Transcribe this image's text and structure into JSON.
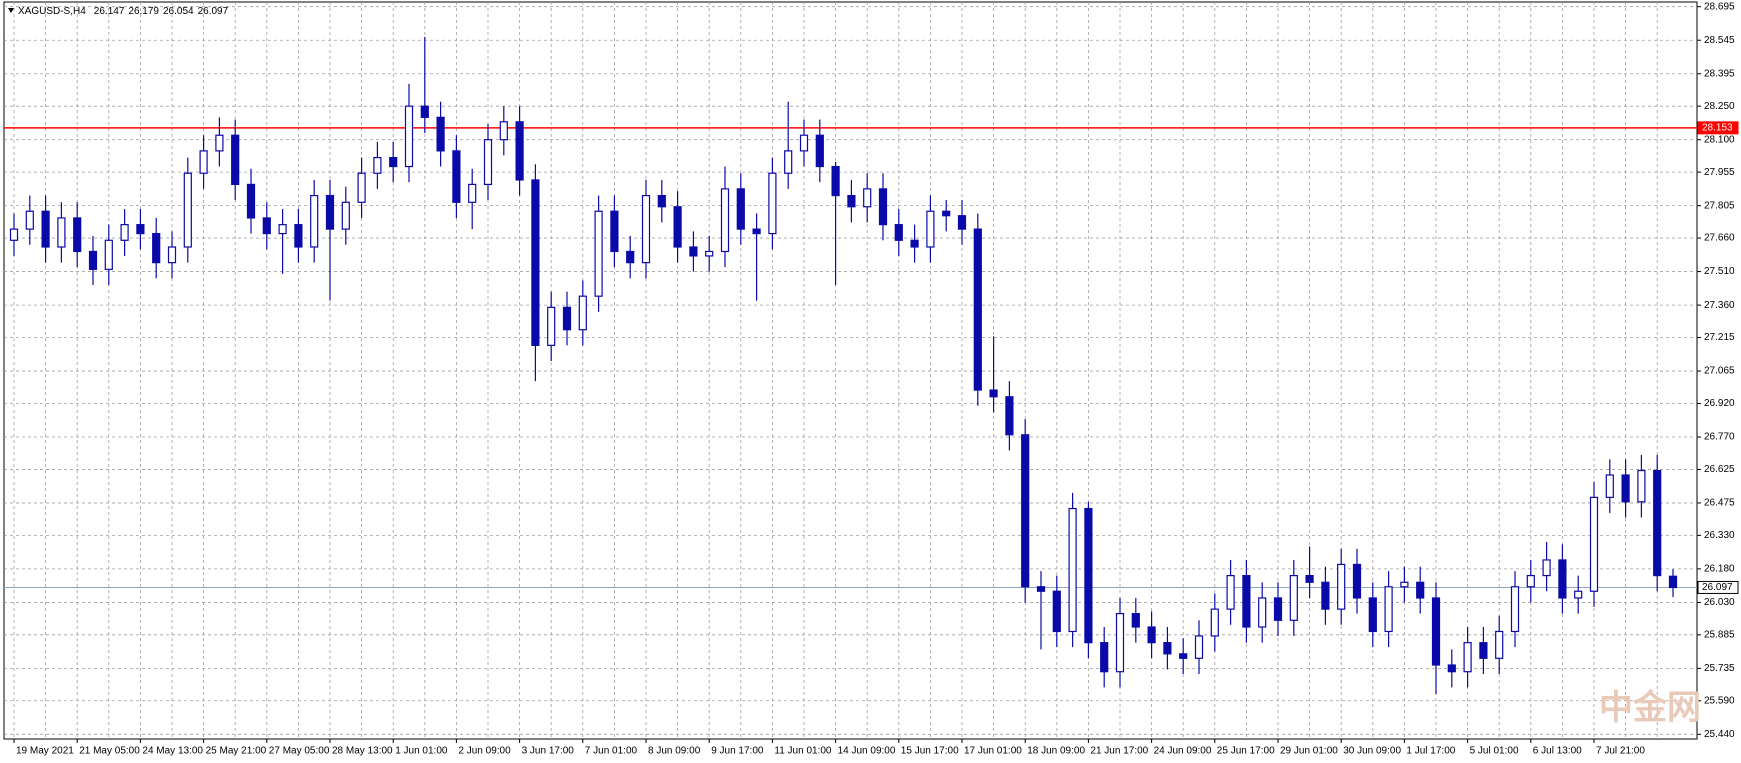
{
  "chart_data": {
    "type": "candlestick",
    "symbol": "XAGUSD-S,H4",
    "watermark": "中金网",
    "categories": [
      "19 May 2021",
      null,
      null,
      null,
      "21 May 05:00",
      null,
      null,
      null,
      "24 May 13:00",
      null,
      null,
      null,
      "25 May 21:00",
      null,
      null,
      null,
      "27 May 05:00",
      null,
      null,
      null,
      "28 May 13:00",
      null,
      null,
      null,
      "1 Jun 01:00",
      null,
      null,
      null,
      "2 Jun 09:00",
      null,
      null,
      null,
      "3 Jun 17:00",
      null,
      null,
      null,
      "7 Jun 01:00",
      null,
      null,
      null,
      "8 Jun 09:00",
      null,
      null,
      null,
      "9 Jun 17:00",
      null,
      null,
      null,
      "11 Jun 01:00",
      null,
      null,
      null,
      "14 Jun 09:00",
      null,
      null,
      null,
      "15 Jun 17:00",
      null,
      null,
      null,
      "17 Jun 01:00",
      null,
      null,
      null,
      "18 Jun 09:00",
      null,
      null,
      null,
      "21 Jun 17:00",
      null,
      null,
      null,
      "24 Jun 09:00",
      null,
      null,
      null,
      "25 Jun 17:00",
      null,
      null,
      null,
      "29 Jun 01:00",
      null,
      null,
      null,
      "30 Jun 09:00",
      null,
      null,
      null,
      "1 Jul 17:00",
      null,
      null,
      null,
      "5 Jul 01:00",
      null,
      null,
      null,
      "6 Jul 13:00",
      null,
      null,
      null,
      "7 Jul 21:00",
      null,
      null,
      null,
      null,
      null
    ],
    "open": [
      27.65,
      27.7,
      27.78,
      27.62,
      27.75,
      27.6,
      27.52,
      27.65,
      27.72,
      27.68,
      27.55,
      27.62,
      27.95,
      28.05,
      28.12,
      27.9,
      27.75,
      27.68,
      27.72,
      27.62,
      27.85,
      27.7,
      27.82,
      27.95,
      28.02,
      27.98,
      28.25,
      28.2,
      28.05,
      27.82,
      27.9,
      28.1,
      28.18,
      27.92,
      27.18,
      27.35,
      27.25,
      27.4,
      27.78,
      27.6,
      27.55,
      27.85,
      27.8,
      27.62,
      27.58,
      27.6,
      27.88,
      27.7,
      27.68,
      27.95,
      28.05,
      28.12,
      27.98,
      27.85,
      27.8,
      27.88,
      27.72,
      27.65,
      27.62,
      27.78,
      27.76,
      27.7,
      26.98,
      26.95,
      26.78,
      26.1,
      26.08,
      25.9,
      26.45,
      25.85,
      25.72,
      25.98,
      25.92,
      25.85,
      25.8,
      25.78,
      25.88,
      26.0,
      26.15,
      25.92,
      26.05,
      25.95,
      26.15,
      26.12,
      26.0,
      26.2,
      26.05,
      25.9,
      26.1,
      26.12,
      26.05,
      25.75,
      25.72,
      25.85,
      25.78,
      25.9,
      26.1,
      26.15,
      26.22,
      26.05,
      26.08,
      26.5,
      26.6,
      26.48,
      26.62,
      26.147
    ],
    "high": [
      27.77,
      27.85,
      27.85,
      27.82,
      27.82,
      27.67,
      27.72,
      27.79,
      27.79,
      27.75,
      27.69,
      28.02,
      28.12,
      28.2,
      28.19,
      27.97,
      27.82,
      27.79,
      27.79,
      27.92,
      27.92,
      27.89,
      28.02,
      28.09,
      28.09,
      28.35,
      28.56,
      28.27,
      28.12,
      27.97,
      28.17,
      28.25,
      28.25,
      27.99,
      27.42,
      27.42,
      27.47,
      27.85,
      27.85,
      27.67,
      27.92,
      27.92,
      27.87,
      27.69,
      27.67,
      27.98,
      27.95,
      27.77,
      28.02,
      28.27,
      28.19,
      28.19,
      28.0,
      27.92,
      27.95,
      27.95,
      27.79,
      27.72,
      27.85,
      27.83,
      27.83,
      27.77,
      27.22,
      27.02,
      26.85,
      26.17,
      26.15,
      26.52,
      26.48,
      25.92,
      26.05,
      26.05,
      25.99,
      25.92,
      25.87,
      25.95,
      26.07,
      26.22,
      26.22,
      26.12,
      26.12,
      26.22,
      26.28,
      26.19,
      26.27,
      26.27,
      26.12,
      26.17,
      26.19,
      26.19,
      26.12,
      25.82,
      25.92,
      25.92,
      25.97,
      26.17,
      26.22,
      26.3,
      26.29,
      26.15,
      26.57,
      26.67,
      26.67,
      26.69,
      26.69,
      26.179
    ],
    "low": [
      27.58,
      27.63,
      27.55,
      27.55,
      27.53,
      27.45,
      27.45,
      27.58,
      27.61,
      27.48,
      27.48,
      27.55,
      27.88,
      27.98,
      27.83,
      27.68,
      27.61,
      27.5,
      27.55,
      27.55,
      27.38,
      27.63,
      27.75,
      27.88,
      27.91,
      27.91,
      28.13,
      27.98,
      27.75,
      27.7,
      27.83,
      28.03,
      27.85,
      27.02,
      27.11,
      27.18,
      27.18,
      27.33,
      27.53,
      27.48,
      27.48,
      27.73,
      27.55,
      27.51,
      27.51,
      27.53,
      27.63,
      27.38,
      27.61,
      27.88,
      27.98,
      27.91,
      27.45,
      27.73,
      27.73,
      27.65,
      27.58,
      27.55,
      27.55,
      27.69,
      27.63,
      26.91,
      26.88,
      26.71,
      26.03,
      25.82,
      25.83,
      25.83,
      25.78,
      25.65,
      25.65,
      25.85,
      25.78,
      25.73,
      25.71,
      25.71,
      25.81,
      25.93,
      25.85,
      25.85,
      25.88,
      25.88,
      26.05,
      25.93,
      25.93,
      25.98,
      25.83,
      25.83,
      26.03,
      25.98,
      25.62,
      25.65,
      25.65,
      25.71,
      25.71,
      25.83,
      26.03,
      26.08,
      25.98,
      25.98,
      26.01,
      26.43,
      26.41,
      26.41,
      26.08,
      26.054
    ],
    "close": [
      27.7,
      27.78,
      27.62,
      27.75,
      27.6,
      27.52,
      27.65,
      27.72,
      27.68,
      27.55,
      27.62,
      27.95,
      28.05,
      28.12,
      27.9,
      27.75,
      27.68,
      27.72,
      27.62,
      27.85,
      27.7,
      27.82,
      27.95,
      28.02,
      27.98,
      28.25,
      28.2,
      28.05,
      27.82,
      27.9,
      28.1,
      28.18,
      27.92,
      27.18,
      27.35,
      27.25,
      27.4,
      27.78,
      27.6,
      27.55,
      27.85,
      27.8,
      27.62,
      27.58,
      27.6,
      27.88,
      27.7,
      27.68,
      27.95,
      28.05,
      28.12,
      27.98,
      27.85,
      27.8,
      27.88,
      27.72,
      27.65,
      27.62,
      27.78,
      27.76,
      27.7,
      26.98,
      26.95,
      26.78,
      26.1,
      26.08,
      25.9,
      26.45,
      25.85,
      25.72,
      25.98,
      25.92,
      25.85,
      25.8,
      25.78,
      25.88,
      26.0,
      26.15,
      25.92,
      26.05,
      25.95,
      26.15,
      26.12,
      26.0,
      26.2,
      26.05,
      25.9,
      26.1,
      26.12,
      26.05,
      25.75,
      25.72,
      25.85,
      25.78,
      25.9,
      26.1,
      26.15,
      26.22,
      26.05,
      26.08,
      26.5,
      26.6,
      26.48,
      26.62,
      26.15,
      26.097
    ],
    "color": "#0a0aa8",
    "hline": {
      "value": 28.153,
      "color": "#ff0000"
    },
    "ylim": [
      25.419,
      28.716
    ],
    "yticks": [
      28.695,
      28.545,
      28.395,
      {
        "value": 28.25,
        "label": "28.250"
      },
      {
        "value": 28.1,
        "label": "28.100"
      },
      27.955,
      27.805,
      {
        "value": 27.66,
        "label": "27.660"
      },
      {
        "value": 27.51,
        "label": "27.510"
      },
      {
        "value": 27.36,
        "label": "27.360"
      },
      27.215,
      27.065,
      {
        "value": 26.92,
        "label": "26.920"
      },
      {
        "value": 26.77,
        "label": "26.770"
      },
      26.625,
      26.475,
      {
        "value": 26.33,
        "label": "26.330"
      },
      {
        "value": 26.18,
        "label": "26.180"
      },
      {
        "value": 26.03,
        "label": "26.030"
      },
      25.885,
      25.735,
      {
        "value": 25.59,
        "label": "25.590"
      },
      {
        "value": 25.44,
        "label": "25.440"
      }
    ],
    "grid": true
  }
}
